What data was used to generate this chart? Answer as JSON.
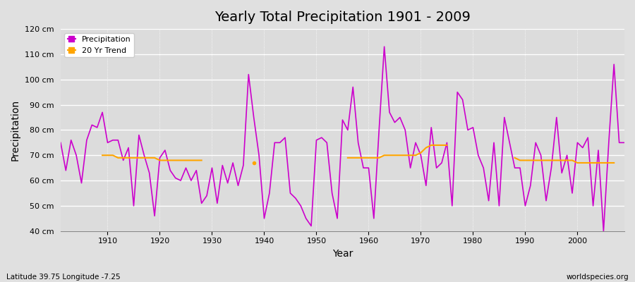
{
  "title": "Yearly Total Precipitation 1901 - 2009",
  "xlabel": "Year",
  "ylabel": "Precipitation",
  "subtitle_left": "Latitude 39.75 Longitude -7.25",
  "subtitle_right": "worldspecies.org",
  "precip_color": "#CC00CC",
  "trend_color": "#FFA500",
  "bg_color": "#E0E0E0",
  "plot_bg_color": "#DCDCDC",
  "ylim": [
    40,
    120
  ],
  "yticks": [
    40,
    50,
    60,
    70,
    80,
    90,
    100,
    110,
    120
  ],
  "ytick_labels": [
    "40 cm",
    "50 cm",
    "60 cm",
    "70 cm",
    "80 cm",
    "90 cm",
    "100 cm",
    "110 cm",
    "120 cm"
  ],
  "years": [
    1901,
    1902,
    1903,
    1904,
    1905,
    1906,
    1907,
    1908,
    1909,
    1910,
    1911,
    1912,
    1913,
    1914,
    1915,
    1916,
    1917,
    1918,
    1919,
    1920,
    1921,
    1922,
    1923,
    1924,
    1925,
    1926,
    1927,
    1928,
    1929,
    1930,
    1931,
    1932,
    1933,
    1934,
    1935,
    1936,
    1937,
    1938,
    1939,
    1940,
    1941,
    1942,
    1943,
    1944,
    1945,
    1946,
    1947,
    1948,
    1949,
    1950,
    1951,
    1952,
    1953,
    1954,
    1955,
    1956,
    1957,
    1958,
    1959,
    1960,
    1961,
    1962,
    1963,
    1964,
    1965,
    1966,
    1967,
    1968,
    1969,
    1970,
    1971,
    1972,
    1973,
    1974,
    1975,
    1976,
    1977,
    1978,
    1979,
    1980,
    1981,
    1982,
    1983,
    1984,
    1985,
    1986,
    1987,
    1988,
    1989,
    1990,
    1991,
    1992,
    1993,
    1994,
    1995,
    1996,
    1997,
    1998,
    1999,
    2000,
    2001,
    2002,
    2003,
    2004,
    2005,
    2006,
    2007,
    2008,
    2009
  ],
  "precipitation": [
    75,
    64,
    76,
    70,
    59,
    76,
    82,
    81,
    87,
    75,
    76,
    76,
    68,
    73,
    50,
    78,
    70,
    63,
    46,
    69,
    72,
    64,
    61,
    60,
    65,
    60,
    64,
    51,
    54,
    65,
    51,
    66,
    59,
    67,
    58,
    66,
    102,
    85,
    70,
    45,
    55,
    75,
    75,
    77,
    55,
    53,
    50,
    45,
    42,
    76,
    77,
    75,
    55,
    45,
    84,
    80,
    97,
    75,
    65,
    65,
    45,
    80,
    113,
    87,
    83,
    85,
    80,
    65,
    75,
    70,
    58,
    81,
    65,
    67,
    75,
    50,
    95,
    92,
    80,
    81,
    70,
    65,
    52,
    75,
    50,
    85,
    75,
    65,
    65,
    50,
    58,
    75,
    70,
    52,
    65,
    85,
    63,
    70,
    55,
    75,
    73,
    77,
    50,
    72,
    40,
    75,
    106,
    75,
    75
  ],
  "trend_segments": [
    {
      "years": [
        1909,
        1910,
        1911,
        1912,
        1913,
        1914,
        1915,
        1916,
        1917,
        1918,
        1919,
        1920,
        1921,
        1922,
        1923,
        1924,
        1925,
        1926,
        1927,
        1928
      ],
      "values": [
        70,
        70,
        70,
        69,
        69,
        69,
        69,
        69,
        69,
        69,
        69,
        68,
        68,
        68,
        68,
        68,
        68,
        68,
        68,
        68
      ]
    },
    {
      "years": [
        1938
      ],
      "values": [
        67
      ]
    },
    {
      "years": [
        1956,
        1957,
        1958,
        1959,
        1960,
        1961,
        1962,
        1963,
        1964,
        1965,
        1966,
        1967,
        1968,
        1969,
        1970,
        1971,
        1972,
        1973,
        1974,
        1975
      ],
      "values": [
        69,
        69,
        69,
        69,
        69,
        69,
        69,
        70,
        70,
        70,
        70,
        70,
        70,
        70,
        71,
        73,
        74,
        74,
        74,
        74
      ]
    },
    {
      "years": [
        1988,
        1989,
        1990,
        1991,
        1992,
        1993,
        1994,
        1995,
        1996,
        1997,
        1998,
        1999,
        2000,
        2001,
        2002,
        2003,
        2004,
        2005,
        2006,
        2007
      ],
      "values": [
        69,
        68,
        68,
        68,
        68,
        68,
        68,
        68,
        68,
        68,
        68,
        68,
        67,
        67,
        67,
        67,
        67,
        67,
        67,
        67
      ]
    }
  ]
}
